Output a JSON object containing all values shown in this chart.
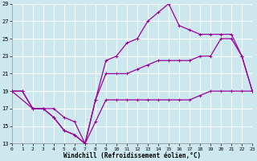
{
  "xlabel": "Windchill (Refroidissement éolien,°C)",
  "bg": "#cce8ee",
  "grid_color": "#b0d8d8",
  "line_color": "#990099",
  "xlim": [
    0,
    23
  ],
  "ylim": [
    13,
    29
  ],
  "yticks": [
    13,
    15,
    17,
    19,
    21,
    23,
    25,
    27,
    29
  ],
  "xticks": [
    0,
    1,
    2,
    3,
    4,
    5,
    6,
    7,
    8,
    9,
    10,
    11,
    12,
    13,
    14,
    15,
    16,
    17,
    18,
    19,
    20,
    21,
    22,
    23
  ],
  "line1_x": [
    0,
    1,
    2,
    3,
    4,
    5,
    6,
    7,
    8,
    9,
    10,
    11,
    12,
    13,
    14,
    15,
    16,
    17,
    18,
    19,
    20,
    21,
    22,
    23
  ],
  "line1_y": [
    19,
    19,
    17,
    17,
    16,
    14.5,
    14,
    13,
    15.5,
    18,
    18,
    18,
    18,
    18,
    18,
    18,
    18,
    18,
    18.5,
    19,
    19,
    19,
    19,
    19
  ],
  "line2_x": [
    0,
    1,
    2,
    3,
    4,
    5,
    6,
    7,
    8,
    9,
    10,
    11,
    12,
    13,
    14,
    15,
    16,
    17,
    18,
    19,
    20,
    21,
    22,
    23
  ],
  "line2_y": [
    19,
    19,
    17,
    17,
    17,
    16,
    15.5,
    13,
    18,
    21,
    21,
    21,
    21.5,
    22,
    22.5,
    22.5,
    22.5,
    22.5,
    23,
    23,
    25,
    25,
    23,
    19
  ],
  "line3_x": [
    0,
    2,
    3,
    4,
    5,
    6,
    7,
    8,
    9,
    10,
    11,
    12,
    13,
    14,
    15,
    16,
    17,
    18,
    19,
    20,
    21,
    22,
    23
  ],
  "line3_y": [
    19,
    17,
    17,
    16,
    14.5,
    14,
    13,
    18,
    22.5,
    23,
    24.5,
    25,
    27,
    28,
    29,
    26.5,
    26,
    25.5,
    25.5,
    25.5,
    25.5,
    23,
    19
  ]
}
